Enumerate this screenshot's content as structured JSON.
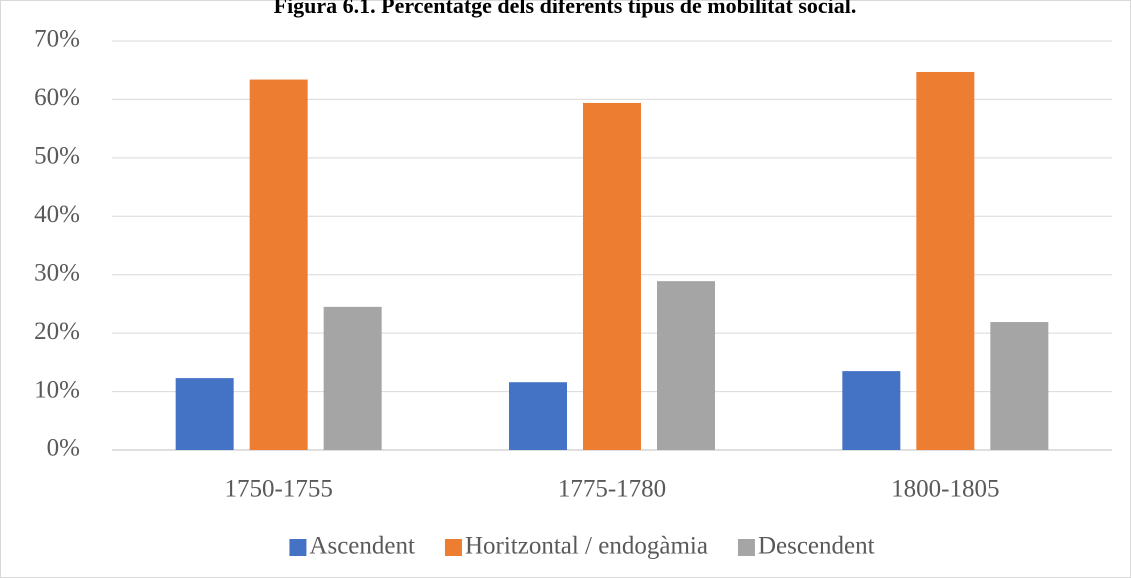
{
  "chart_data": {
    "type": "bar",
    "title": "Figura 6.1. Percentatge dels diferents tipus de mobilitat social.",
    "categories": [
      "1750-1755",
      "1775-1780",
      "1800-1805"
    ],
    "series": [
      {
        "name": "Ascendent",
        "color": "#4472c4",
        "values": [
          12.3,
          11.6,
          13.5
        ]
      },
      {
        "name": "Horitzontal / endogàmia",
        "color": "#ed7d31",
        "values": [
          63.4,
          59.4,
          64.7
        ]
      },
      {
        "name": "Descendent",
        "color": "#a5a5a5",
        "values": [
          24.5,
          28.9,
          21.9
        ]
      }
    ],
    "ylim": [
      0,
      70
    ],
    "yticks": [
      {
        "value": 0,
        "label": "0%"
      },
      {
        "value": 10,
        "label": "10%"
      },
      {
        "value": 20,
        "label": "20%"
      },
      {
        "value": 30,
        "label": "30%"
      },
      {
        "value": 40,
        "label": "40%"
      },
      {
        "value": 50,
        "label": "50%"
      },
      {
        "value": 60,
        "label": "60%"
      },
      {
        "value": 70,
        "label": "70%"
      }
    ],
    "grid": true,
    "legend": "bottom"
  }
}
